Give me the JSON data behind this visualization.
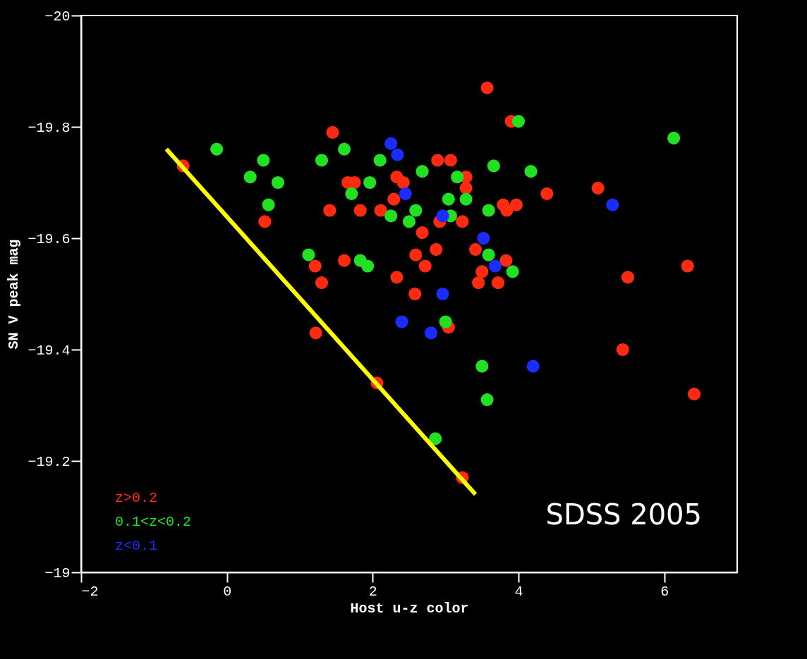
{
  "chart_data": {
    "type": "scatter",
    "xlabel": "Host u-z color",
    "ylabel": "SN V peak mag",
    "xlim": [
      -2,
      7
    ],
    "ylim": [
      -19,
      -20
    ],
    "xticks": [
      -2,
      0,
      2,
      4,
      6
    ],
    "yticks": [
      -20,
      -19.8,
      -19.6,
      -19.4,
      -19.2,
      -19
    ],
    "grid": false,
    "legend": "bottom left",
    "marker": "circle",
    "annotations": [
      "SDSS 2005"
    ],
    "series": [
      {
        "name": "z>0.2",
        "color": "#ff2a10",
        "x": [
          -0.6,
          0.52,
          1.45,
          1.66,
          1.75,
          2.33,
          2.42,
          2.89,
          3.07,
          3.28,
          3.28,
          2.29,
          3.79,
          3.97,
          3.84,
          1.41,
          1.83,
          2.11,
          2.92,
          3.23,
          2.68,
          2.87,
          3.41,
          2.59,
          1.61,
          1.21,
          2.72,
          3.83,
          3.5,
          3.45,
          3.72,
          1.3,
          2.33,
          2.58,
          3.9,
          4.39,
          5.09,
          5.5,
          6.32,
          1.22,
          3.04,
          2.06,
          3.23,
          5.43,
          6.41,
          3.57
        ],
        "values": [
          -19.73,
          -19.63,
          -19.79,
          -19.7,
          -19.7,
          -19.71,
          -19.7,
          -19.74,
          -19.74,
          -19.71,
          -19.69,
          -19.67,
          -19.66,
          -19.66,
          -19.65,
          -19.65,
          -19.65,
          -19.65,
          -19.63,
          -19.63,
          -19.61,
          -19.58,
          -19.58,
          -19.57,
          -19.56,
          -19.55,
          -19.55,
          -19.56,
          -19.54,
          -19.52,
          -19.52,
          -19.52,
          -19.53,
          -19.5,
          -19.81,
          -19.68,
          -19.69,
          -19.53,
          -19.55,
          -19.43,
          -19.44,
          -19.34,
          -19.17,
          -19.4,
          -19.32,
          -19.87
        ]
      },
      {
        "name": "0.1<z<0.2",
        "color": "#22e022",
        "x": [
          -0.14,
          0.5,
          0.32,
          0.7,
          0.57,
          1.61,
          1.3,
          2.1,
          2.68,
          3.66,
          1.96,
          1.71,
          3.16,
          3.04,
          3.28,
          3.59,
          2.25,
          2.59,
          2.5,
          3.07,
          1.12,
          1.83,
          1.93,
          3.59,
          4.0,
          6.13,
          4.17,
          3.92,
          3.0,
          3.5,
          3.57,
          2.86
        ],
        "values": [
          -19.76,
          -19.74,
          -19.71,
          -19.7,
          -19.66,
          -19.76,
          -19.74,
          -19.74,
          -19.72,
          -19.73,
          -19.7,
          -19.68,
          -19.71,
          -19.67,
          -19.67,
          -19.65,
          -19.64,
          -19.65,
          -19.63,
          -19.64,
          -19.57,
          -19.56,
          -19.55,
          -19.57,
          -19.81,
          -19.78,
          -19.72,
          -19.54,
          -19.45,
          -19.37,
          -19.31,
          -19.24
        ]
      },
      {
        "name": "z<0.1",
        "color": "#1a2cff",
        "x": [
          2.25,
          2.34,
          2.45,
          2.96,
          3.52,
          3.68,
          2.96,
          2.4,
          2.8,
          5.29,
          4.2
        ],
        "values": [
          -19.77,
          -19.75,
          -19.68,
          -19.64,
          -19.6,
          -19.55,
          -19.5,
          -19.45,
          -19.43,
          -19.66,
          -19.37
        ]
      },
      {
        "type": "line",
        "marker": "none",
        "color": "#ffff00",
        "x": [
          -0.83,
          3.41
        ],
        "values": [
          -19.76,
          -19.14
        ]
      }
    ]
  }
}
